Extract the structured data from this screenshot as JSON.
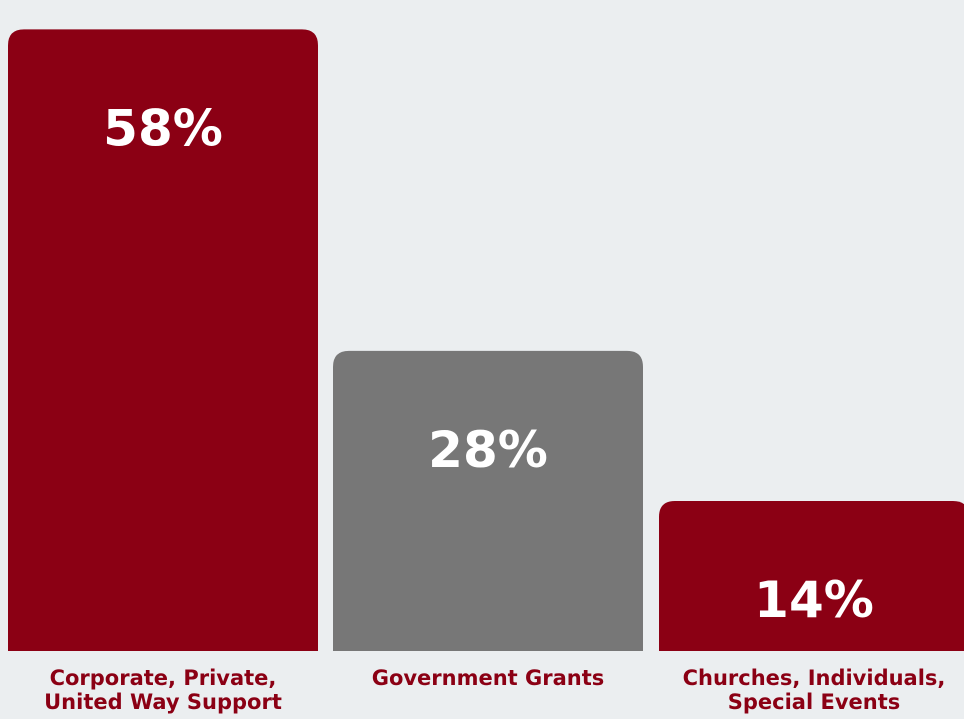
{
  "chart_data": {
    "type": "bar",
    "categories": [
      "Corporate, Private, United Way Support",
      "Government Grants",
      "Churches, Individuals, Special Events"
    ],
    "category_label_lines": [
      [
        "Corporate, Private,",
        "United Way Support"
      ],
      [
        "Government Grants"
      ],
      [
        "Churches, Individuals,",
        "Special Events"
      ]
    ],
    "values": [
      58,
      28,
      14
    ],
    "value_labels": [
      "58%",
      "28%",
      "14%"
    ],
    "unit": "%",
    "ylim": [
      0,
      60
    ],
    "grid": false,
    "legend": "none",
    "title": "",
    "xlabel": "",
    "ylabel": ""
  },
  "colors": {
    "background": "#ebeef0",
    "bars": [
      "#8b0014",
      "#777777",
      "#8b0014"
    ],
    "category_text": "#8b0014",
    "value_text": "#ffffff"
  }
}
